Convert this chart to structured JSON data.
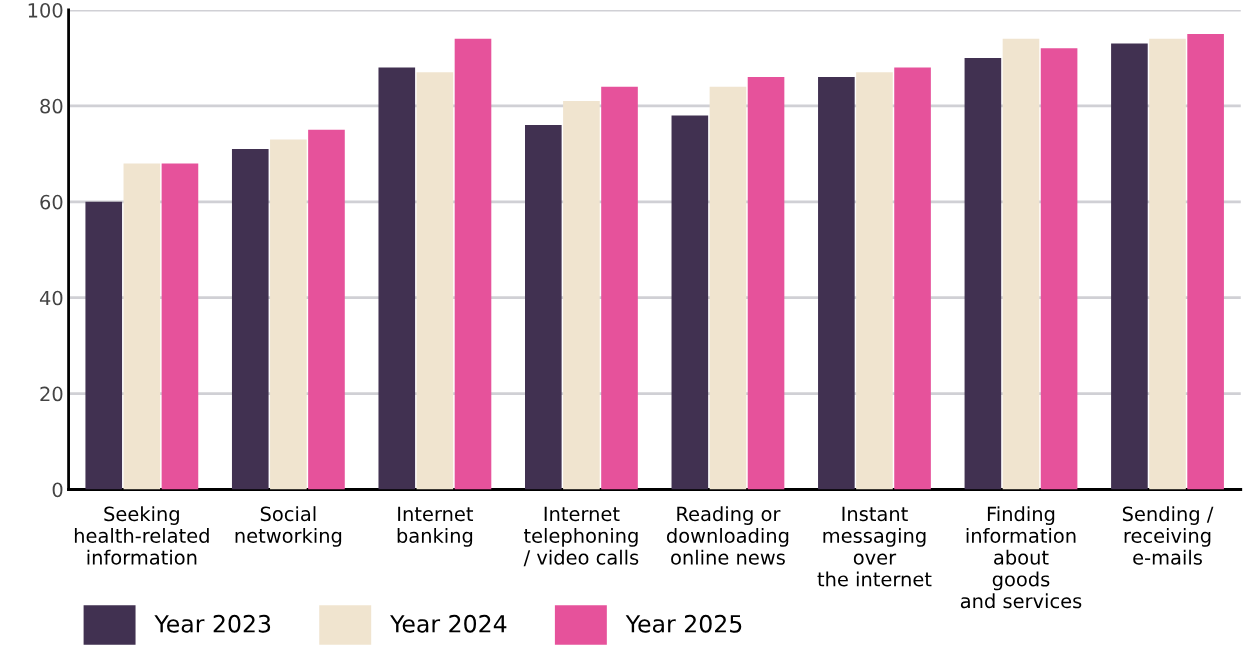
{
  "chart_data": {
    "type": "bar",
    "categories": [
      "Seeking\nhealth-related\ninformation",
      "Social\nnetworking",
      "Internet\nbanking",
      "Internet\ntelephoning\n/ video calls",
      "Reading or\ndownloading\nonline news",
      "Instant\nmessaging\nover\nthe internet",
      "Finding\ninformation\nabout\ngoods\nand services",
      "Sending /\nreceiving\ne-mails"
    ],
    "series": [
      {
        "name": "Year 2023",
        "color": "#413151",
        "values": [
          60,
          71,
          88,
          76,
          78,
          86,
          90,
          93
        ]
      },
      {
        "name": "Year 2024",
        "color": "#f0e4cf",
        "values": [
          68,
          73,
          87,
          81,
          84,
          87,
          94,
          94
        ]
      },
      {
        "name": "Year 2025",
        "color": "#e6529b",
        "values": [
          68,
          75,
          94,
          84,
          86,
          88,
          92,
          95
        ]
      }
    ],
    "ylim": [
      0,
      100
    ],
    "yticks": [
      0,
      20,
      40,
      60,
      80,
      100
    ],
    "grid": "y",
    "legend": "bottom left"
  }
}
